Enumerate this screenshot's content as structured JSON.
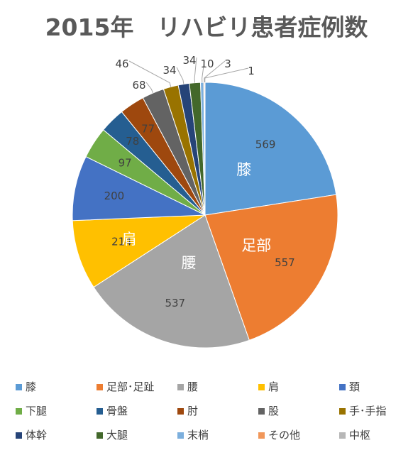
{
  "chart_data": {
    "type": "pie",
    "title": "2015年　リハビリ患者症例数",
    "legend_position": "bottom",
    "series": [
      {
        "name": "膝",
        "value": 569,
        "color": "#5b9bd5",
        "slice_label": "膝"
      },
      {
        "name": "足部･足趾",
        "value": 557,
        "color": "#ed7d31",
        "slice_label": "足部"
      },
      {
        "name": "腰",
        "value": 537,
        "color": "#a5a5a5",
        "slice_label": "腰"
      },
      {
        "name": "肩",
        "value": 214,
        "color": "#ffc000",
        "slice_label": "肩"
      },
      {
        "name": "頚",
        "value": 200,
        "color": "#4472c4",
        "slice_label": ""
      },
      {
        "name": "下腿",
        "value": 97,
        "color": "#70ad47",
        "slice_label": ""
      },
      {
        "name": "骨盤",
        "value": 78,
        "color": "#255e91",
        "slice_label": ""
      },
      {
        "name": "肘",
        "value": 77,
        "color": "#9e480e",
        "slice_label": ""
      },
      {
        "name": "股",
        "value": 68,
        "color": "#636363",
        "slice_label": ""
      },
      {
        "name": "手･手指",
        "value": 46,
        "color": "#997300",
        "slice_label": ""
      },
      {
        "name": "体幹",
        "value": 34,
        "color": "#264478",
        "slice_label": ""
      },
      {
        "name": "大腿",
        "value": 34,
        "color": "#43682b",
        "slice_label": ""
      },
      {
        "name": "末梢",
        "value": 10,
        "color": "#7cafdd",
        "slice_label": ""
      },
      {
        "name": "その他",
        "value": 3,
        "color": "#f1975a",
        "slice_label": ""
      },
      {
        "name": "中枢",
        "value": 1,
        "color": "#b7b7b7",
        "slice_label": ""
      }
    ]
  }
}
